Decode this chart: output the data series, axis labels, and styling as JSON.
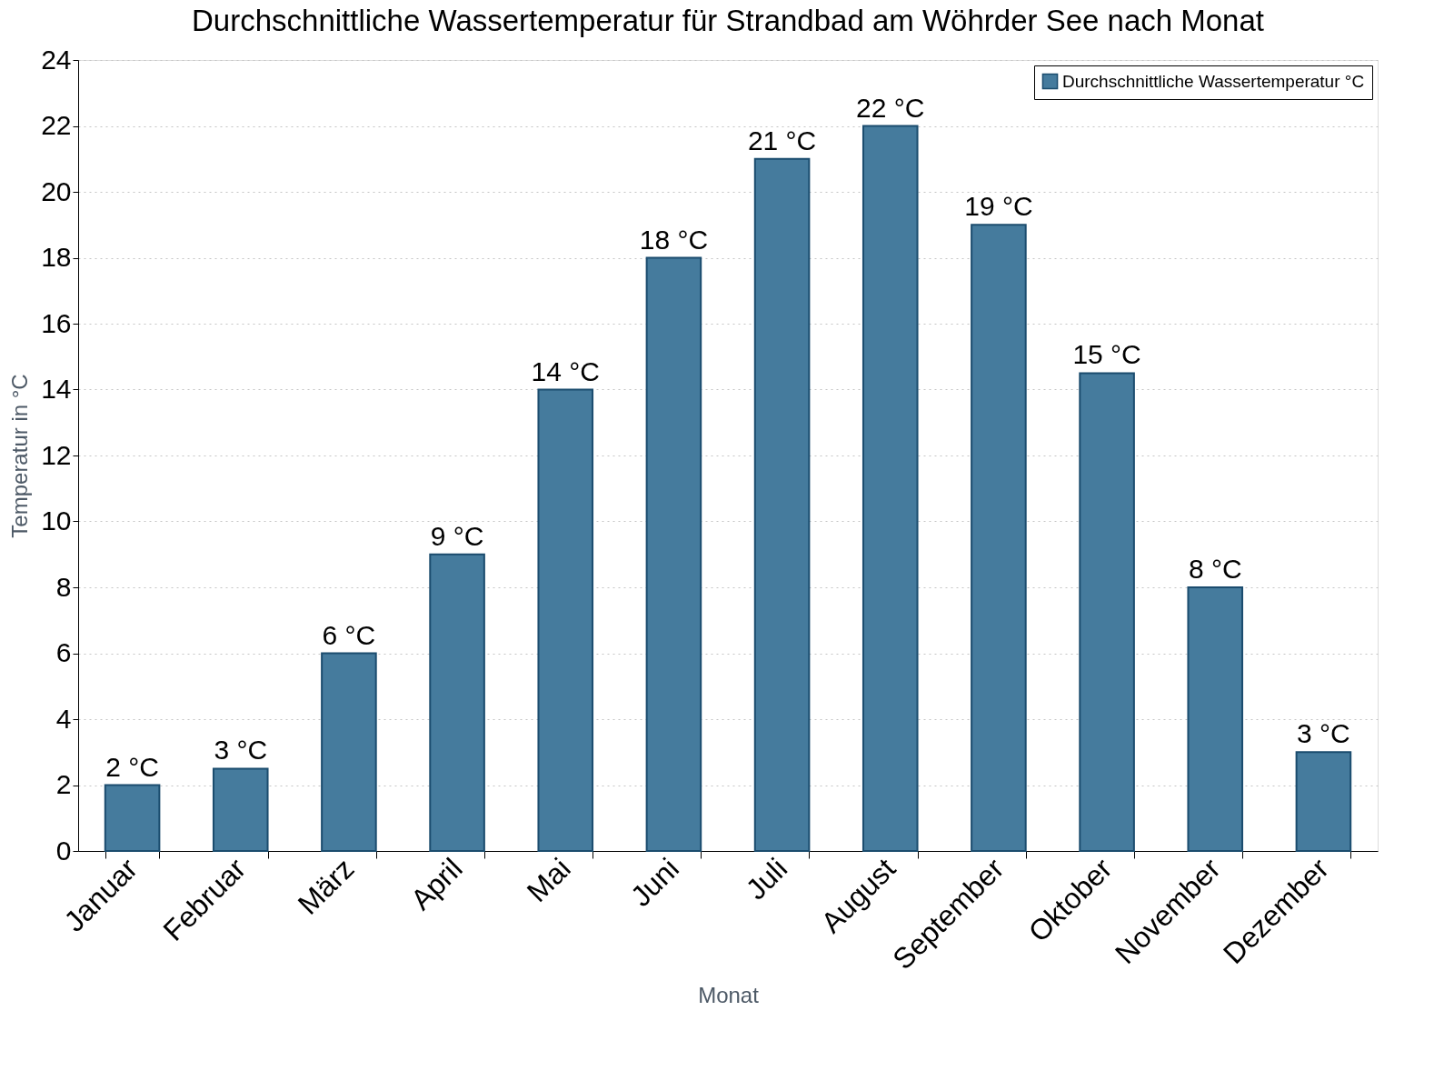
{
  "chart_data": {
    "type": "bar",
    "title": "Durchschnittliche Wassertemperatur für Strandbad am Wöhrder See nach Monat",
    "xlabel": "Monat",
    "ylabel": "Temperatur in °C",
    "categories": [
      "Januar",
      "Februar",
      "März",
      "April",
      "Mai",
      "Juni",
      "Juli",
      "August",
      "September",
      "Oktober",
      "November",
      "Dezember"
    ],
    "series": [
      {
        "name": "Durchschnittliche Wassertemperatur °C",
        "color": "#457b9d",
        "values": [
          2,
          2.5,
          6,
          9,
          14,
          18,
          21,
          22,
          19,
          14.5,
          8,
          3
        ],
        "value_labels": [
          "2 °C",
          "3 °C",
          "6 °C",
          "9 °C",
          "14 °C",
          "18 °C",
          "21 °C",
          "22 °C",
          "19 °C",
          "15 °C",
          "8 °C",
          "3 °C"
        ]
      }
    ],
    "ylim": [
      0,
      24
    ],
    "yticks": [
      0,
      2,
      4,
      6,
      8,
      10,
      12,
      14,
      16,
      18,
      20,
      22,
      24
    ],
    "grid": "y",
    "legend": "top right"
  }
}
